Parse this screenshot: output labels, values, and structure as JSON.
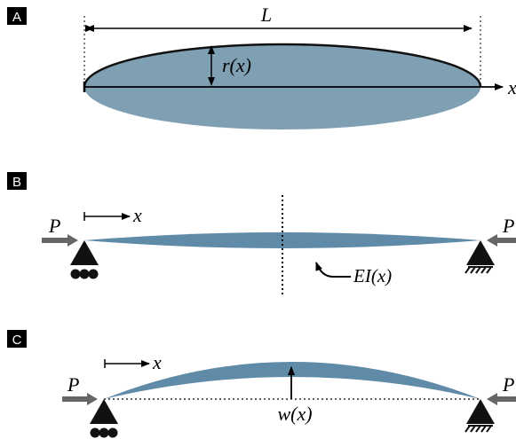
{
  "panels": [
    {
      "label": "A",
      "length": "L",
      "radius": "r(x)",
      "axis": "x"
    },
    {
      "label": "B",
      "load_left": "P",
      "axis": "x",
      "stiffness": "EI(x)",
      "load_right": "P"
    },
    {
      "label": "C",
      "load_left": "P",
      "axis": "x",
      "deflection": "w(x)",
      "load_right": "P"
    }
  ]
}
